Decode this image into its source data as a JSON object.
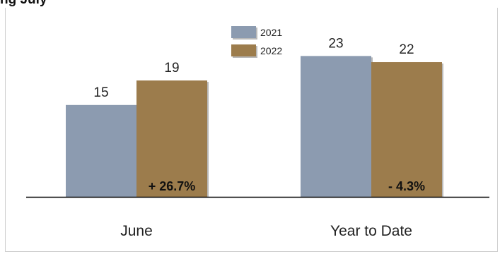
{
  "header_fragment": "ng July",
  "chart_data": {
    "type": "bar",
    "categories": [
      "June",
      "Year to Date"
    ],
    "series": [
      {
        "name": "2021",
        "values": [
          15,
          23
        ],
        "color": "#8c9bb0"
      },
      {
        "name": "2022",
        "values": [
          19,
          22
        ],
        "color": "#9c7c4c"
      }
    ],
    "change_labels": [
      "+ 26.7%",
      "- 4.3%"
    ],
    "legend_position": "top-center",
    "ylim": [
      0,
      23.5
    ],
    "grid": false,
    "title": "",
    "xlabel": "",
    "ylabel": ""
  }
}
